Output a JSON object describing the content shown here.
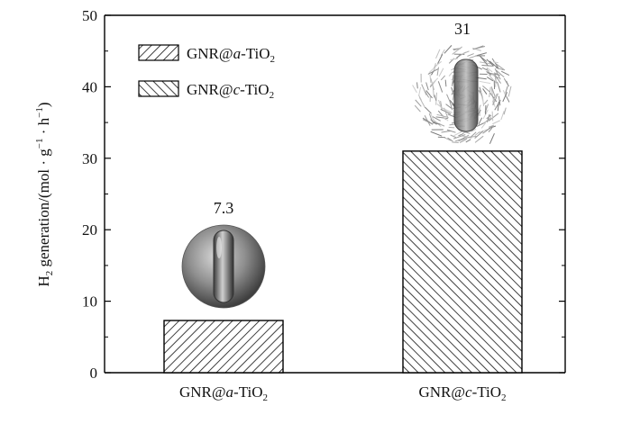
{
  "chart_data": {
    "type": "bar",
    "categories": [
      {
        "base": "GNR@",
        "ital": "a",
        "rest": "-TiO",
        "sub": "2"
      },
      {
        "base": "GNR@",
        "ital": "c",
        "rest": "-TiO",
        "sub": "2"
      }
    ],
    "series": [
      {
        "values": [
          7.3,
          31
        ]
      }
    ],
    "data_labels": [
      "7.3",
      "31"
    ],
    "hatch": [
      "forward-diagonal",
      "backward-diagonal"
    ],
    "ylabel": {
      "base": "H",
      "sub": "2",
      "rest": " generation/(mol · g",
      "sup1": "−1",
      "mid": " · h",
      "sup2": "−1",
      "end": ")"
    },
    "ylim": [
      0,
      50
    ],
    "yticks": [
      0,
      10,
      20,
      30,
      40,
      50
    ],
    "yticklabels": [
      "0",
      "10",
      "20",
      "30",
      "40",
      "50"
    ],
    "grid": false,
    "legend": {
      "placement": "top-left",
      "entries": [
        {
          "base": "GNR@",
          "ital": "a",
          "rest": "-TiO",
          "sub": "2",
          "hatch": "forward-diagonal"
        },
        {
          "base": "GNR@",
          "ital": "c",
          "rest": "-TiO",
          "sub": "2",
          "hatch": "backward-diagonal"
        }
      ]
    },
    "insets": [
      "smooth-shell-nanorod",
      "fibrous-shell-nanorod"
    ]
  }
}
